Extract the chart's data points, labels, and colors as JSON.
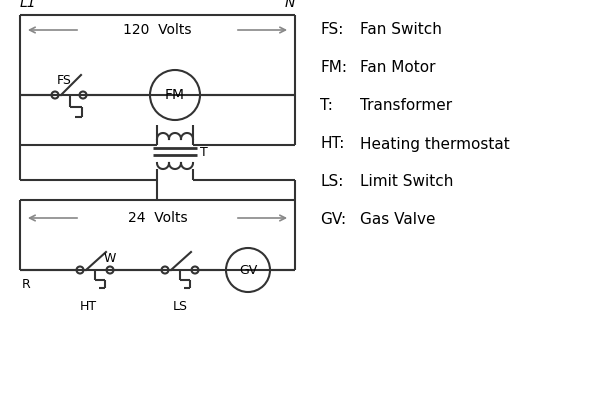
{
  "bg_color": "#ffffff",
  "line_color": "#333333",
  "dim_color": "#888888",
  "text_color": "#000000",
  "legend": [
    [
      "FS:",
      "Fan Switch"
    ],
    [
      "FM:",
      "Fan Motor"
    ],
    [
      "T:",
      "Transformer"
    ],
    [
      "HT:",
      "Heating thermostat"
    ],
    [
      "LS:",
      "Limit Switch"
    ],
    [
      "GV:",
      "Gas Valve"
    ]
  ],
  "figsize": [
    5.9,
    4.0
  ],
  "dpi": 100
}
